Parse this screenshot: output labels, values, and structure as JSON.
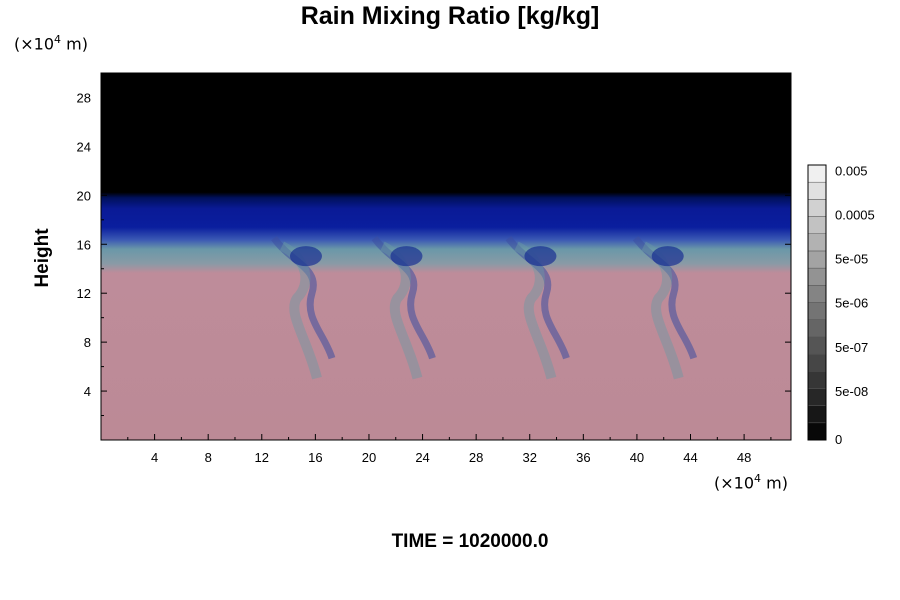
{
  "chart_data": {
    "type": "heatmap",
    "title": "Rain Mixing Ratio [kg/kg]",
    "ylabel": "Height",
    "y_unit": "(×10",
    "y_unit_exp": "4",
    "y_unit_tail": " m)",
    "x_unit": "(×10",
    "x_unit_exp": "4",
    "x_unit_tail": " m)",
    "footer": "TIME = 1020000.0",
    "xlim": [
      0,
      51.5
    ],
    "ylim": [
      0,
      30
    ],
    "x_ticks": [
      "4",
      "8",
      "12",
      "16",
      "20",
      "24",
      "28",
      "32",
      "36",
      "40",
      "44",
      "48"
    ],
    "x_tick_values": [
      4,
      8,
      12,
      16,
      20,
      24,
      28,
      32,
      36,
      40,
      44,
      48
    ],
    "y_ticks": [
      "4",
      "8",
      "12",
      "16",
      "20",
      "24",
      "28"
    ],
    "y_tick_values": [
      4,
      8,
      12,
      16,
      20,
      24,
      28
    ],
    "colorbar": {
      "labels": [
        "0",
        "5e-08",
        "5e-07",
        "5e-06",
        "5e-05",
        "0.0005",
        "0.005"
      ],
      "level_count": 16
    },
    "regions": [
      {
        "from_height": 20,
        "to_height": 30,
        "color": "#000000"
      },
      {
        "from_height": 16.5,
        "to_height": 20,
        "color": "#00148c"
      },
      {
        "from_height": 14,
        "to_height": 16.5,
        "color": "#5a8aa0"
      },
      {
        "from_height": 0,
        "to_height": 14,
        "color": "#be8a98"
      }
    ],
    "plumes_x": [
      15,
      22.5,
      32.5,
      42
    ],
    "grid": false
  }
}
